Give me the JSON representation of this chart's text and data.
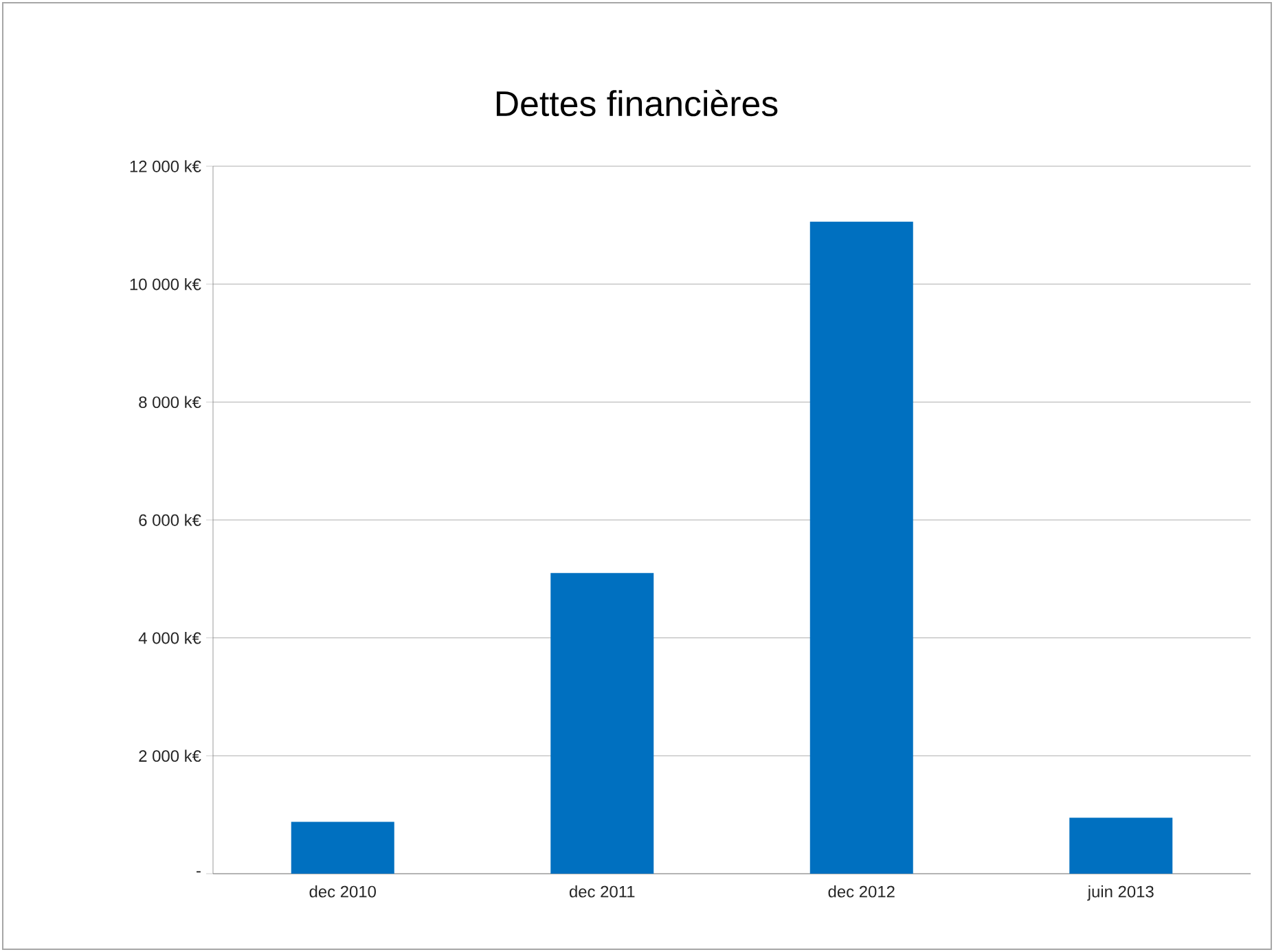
{
  "chart_data": {
    "type": "bar",
    "title": "Dettes financières",
    "categories": [
      "dec 2010",
      "dec 2011",
      "dec 2012",
      "juin 2013"
    ],
    "values": [
      880,
      5100,
      11060,
      950
    ],
    "color": "#0070c0",
    "ylim": [
      0,
      12000
    ],
    "yticks": [
      {
        "value": 0,
        "label": "-"
      },
      {
        "value": 2000,
        "label": "2 000 k€"
      },
      {
        "value": 4000,
        "label": "4 000 k€"
      },
      {
        "value": 6000,
        "label": "6 000 k€"
      },
      {
        "value": 8000,
        "label": "8 000 k€"
      },
      {
        "value": 10000,
        "label": "10 000 k€"
      },
      {
        "value": 12000,
        "label": "12 000 k€"
      }
    ],
    "grid": "y"
  }
}
